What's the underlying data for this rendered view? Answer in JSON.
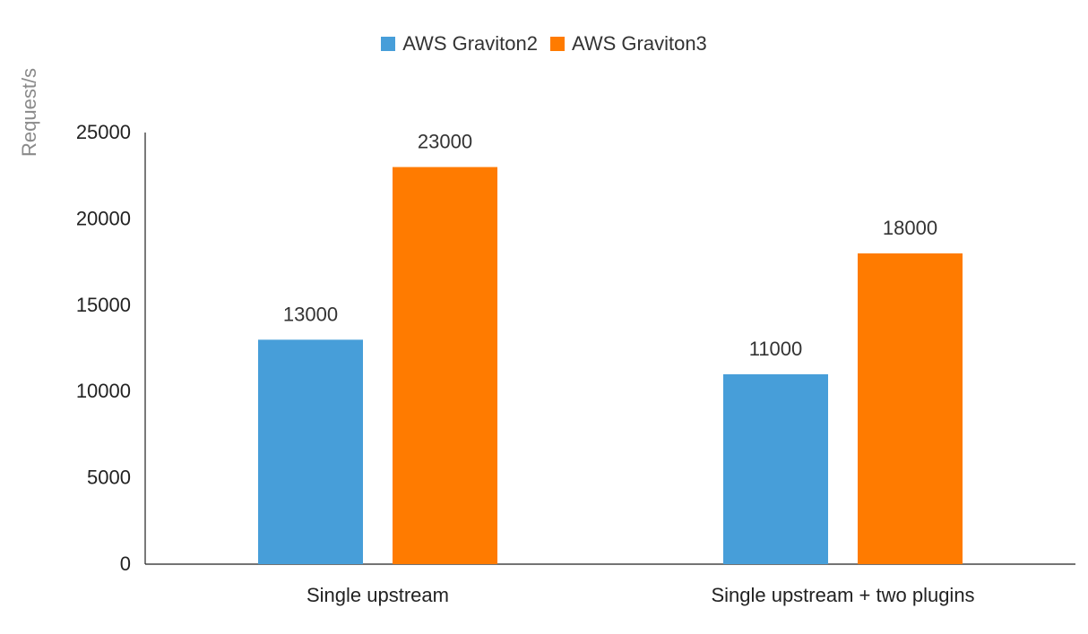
{
  "chart_data": {
    "type": "bar",
    "title": "",
    "xlabel": "",
    "ylabel": "Request/s",
    "categories": [
      "Single upstream",
      "Single upstream + two plugins"
    ],
    "series": [
      {
        "name": "AWS Graviton2",
        "color": "#479ed9",
        "values": [
          13000,
          11000
        ]
      },
      {
        "name": "AWS Graviton3",
        "color": "#ff7b00",
        "values": [
          23000,
          18000
        ]
      }
    ],
    "ylim": [
      0,
      25000
    ],
    "yticks": [
      0,
      5000,
      10000,
      15000,
      20000,
      25000
    ],
    "grid": false,
    "legend_position": "top-center",
    "data_labels": true
  }
}
